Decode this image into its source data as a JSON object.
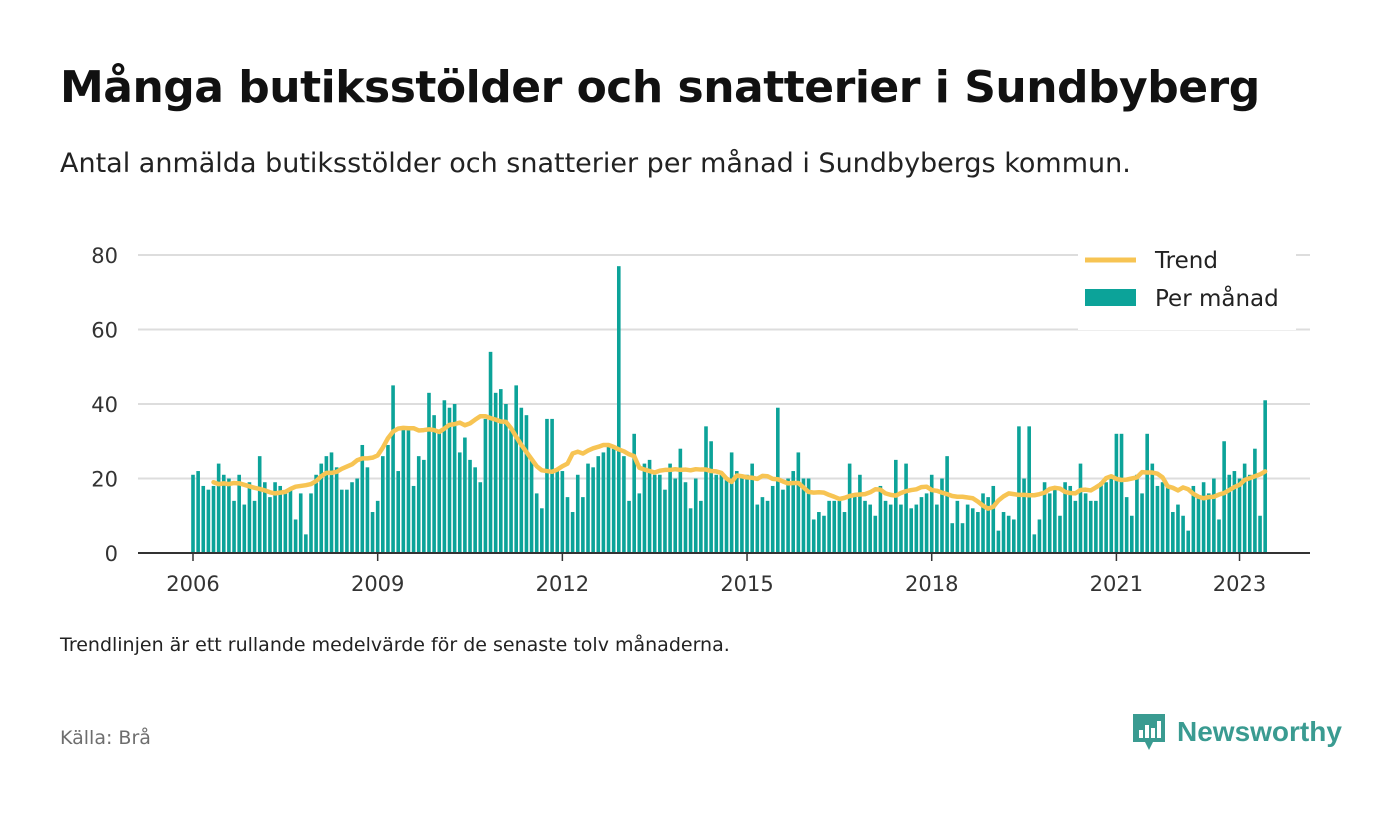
{
  "title": "Många butiksstölder och snatterier i Sundbyberg",
  "subtitle": "Antal anmälda butiksstölder och snatterier per månad i Sundbybergs kommun.",
  "note": "Trendlinjen är ett rullande medelvärde för de senaste tolv månaderna.",
  "source": "Källa: Brå",
  "brand": {
    "name": "Newsworthy",
    "icon": "newsworthy-logo-icon",
    "color": "#3a9b91"
  },
  "colors": {
    "bar": "#0ca399",
    "trend": "#f7c453",
    "grid": "#dddddd",
    "axis": "#333333"
  },
  "chart_data": {
    "type": "bar",
    "title": "Många butiksstölder och snatterier i Sundbyberg",
    "start": "2006-01",
    "ylim": [
      0,
      80
    ],
    "yticks": [
      0,
      20,
      40,
      60,
      80
    ],
    "xticks": [
      "2006",
      "2009",
      "2012",
      "2015",
      "2018",
      "2021",
      "2023"
    ],
    "grid": true,
    "legend": {
      "placement": "top-right",
      "entries": [
        "Trend",
        "Per månad"
      ]
    },
    "series": [
      {
        "name": "Per månad",
        "type": "bar",
        "values": [
          21,
          22,
          18,
          17,
          18,
          24,
          21,
          20,
          14,
          21,
          13,
          19,
          14,
          26,
          19,
          15,
          19,
          18,
          16,
          17,
          9,
          16,
          5,
          16,
          21,
          24,
          26,
          27,
          23,
          17,
          17,
          19,
          20,
          29,
          23,
          11,
          14,
          26,
          29,
          45,
          22,
          34,
          33,
          18,
          26,
          25,
          43,
          37,
          33,
          41,
          39,
          40,
          27,
          31,
          25,
          23,
          19,
          36,
          54,
          43,
          44,
          40,
          33,
          45,
          39,
          37,
          25,
          16,
          12,
          36,
          36,
          22,
          22,
          15,
          11,
          21,
          15,
          24,
          23,
          26,
          27,
          29,
          28,
          77,
          26,
          14,
          32,
          16,
          24,
          25,
          21,
          21,
          17,
          24,
          20,
          28,
          19,
          12,
          20,
          14,
          34,
          30,
          21,
          21,
          20,
          27,
          22,
          21,
          21,
          24,
          13,
          15,
          14,
          18,
          39,
          17,
          20,
          22,
          27,
          20,
          20,
          9,
          11,
          10,
          14,
          14,
          14,
          11,
          24,
          16,
          21,
          14,
          13,
          10,
          18,
          14,
          13,
          25,
          13,
          24,
          12,
          13,
          15,
          16,
          21,
          13,
          20,
          26,
          8,
          14,
          8,
          13,
          12,
          11,
          16,
          15,
          18,
          6,
          11,
          10,
          9,
          34,
          20,
          34,
          5,
          9,
          19,
          16,
          17,
          10,
          19,
          18,
          14,
          24,
          16,
          14,
          14,
          19,
          19,
          20,
          32,
          32,
          15,
          10,
          21,
          16,
          32,
          24,
          18,
          19,
          18,
          11,
          13,
          10,
          6,
          18,
          15,
          19,
          16,
          20,
          9,
          30,
          21,
          22,
          20,
          24,
          21,
          28,
          10,
          41
        ]
      },
      {
        "name": "Trend",
        "type": "line",
        "values": [
          19,
          18.5,
          18.7,
          18.5,
          18.8,
          18.7,
          18.3,
          17.9,
          17.5,
          17.2,
          16.8,
          16.3,
          16,
          16.2,
          16.4,
          17.2,
          17.8,
          18,
          18.2,
          18.5,
          19.3,
          20.6,
          21.5,
          21.5,
          21.8,
          22.6,
          23.2,
          23.8,
          24.9,
          25.4,
          25.4,
          25.6,
          26.2,
          28.3,
          30.8,
          32.6,
          33.4,
          33.6,
          33.5,
          33.5,
          32.9,
          33,
          33.2,
          33,
          32.5,
          33.4,
          34.4,
          34.6,
          35,
          34.3,
          34.8,
          35.8,
          36.7,
          36.7,
          36.2,
          35.8,
          35.3,
          35.2,
          33.5,
          31.2,
          29,
          27.1,
          25.2,
          23.3,
          22.2,
          22,
          21.8,
          22.4,
          23.3,
          24,
          26.7,
          27.2,
          26.7,
          27.5,
          28.1,
          28.5,
          29,
          29,
          28.5,
          27.8,
          27.3,
          26.5,
          26,
          22.9,
          22.4,
          22,
          21.6,
          22.1,
          22.3,
          22.3,
          22.5,
          22.3,
          22.4,
          22.2,
          22.5,
          22.4,
          22.4,
          22,
          21.9,
          21.5,
          20,
          19.1,
          20.8,
          20.6,
          20.3,
          20.2,
          19.9,
          20.7,
          20.6,
          19.9,
          19.8,
          19.2,
          18.7,
          18.8,
          18.8,
          17.6,
          16.4,
          16.2,
          16.3,
          16.2,
          15.6,
          15.1,
          14.5,
          14.8,
          15.3,
          15.6,
          15.7,
          15.8,
          16.3,
          17.1,
          17,
          16,
          15.6,
          15.4,
          16.1,
          16.6,
          16.9,
          17.1,
          17.7,
          17.8,
          16.9,
          16.7,
          16.2,
          15.8,
          15.3,
          15.1,
          15.1,
          14.9,
          14.7,
          13.8,
          12.7,
          11.9,
          12.4,
          14.1,
          15.2,
          16,
          15.8,
          15.6,
          15.6,
          15.5,
          15.5,
          15.8,
          16.2,
          17.2,
          17.5,
          17.3,
          16.4,
          16.1,
          16,
          16.9,
          17,
          16.8,
          17.6,
          18.5,
          20.1,
          20.6,
          19.9,
          19.6,
          19.7,
          20,
          20.3,
          21.7,
          21.6,
          21.6,
          21.3,
          20.3,
          17.9,
          17.5,
          16.8,
          17.6,
          17.1,
          15.9,
          15.1,
          14.7,
          15,
          15.1,
          15.7,
          16.1,
          16.9,
          17.7,
          18.3,
          19.6,
          20.1,
          20.6,
          21.1,
          21.9
        ]
      }
    ]
  }
}
